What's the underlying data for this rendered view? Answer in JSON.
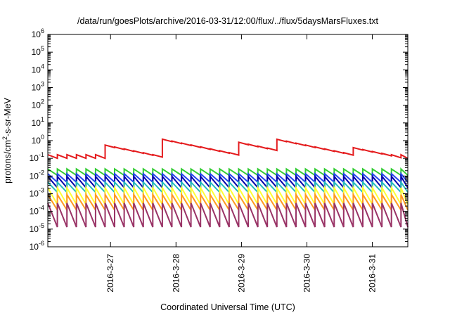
{
  "chart_data": {
    "type": "line",
    "title": "/data/run/goesPlots/archive/2016-03-31/12:00/flux/../flux/5daysMarsFluxes.txt",
    "xlabel": "Coordinated Universal Time (UTC)",
    "ylabel": "protons/cm²-s-sr-MeV",
    "y_scale": "log",
    "ylim": [
      1e-06,
      1000000.0
    ],
    "y_ticks": [
      {
        "value": 1e-06,
        "base": "10",
        "exp": "-6"
      },
      {
        "value": 1e-05,
        "base": "10",
        "exp": "-5"
      },
      {
        "value": 0.0001,
        "base": "10",
        "exp": "-4"
      },
      {
        "value": 0.001,
        "base": "10",
        "exp": "-3"
      },
      {
        "value": 0.01,
        "base": "10",
        "exp": "-2"
      },
      {
        "value": 0.1,
        "base": "10",
        "exp": "-1"
      },
      {
        "value": 1,
        "base": "10",
        "exp": "0"
      },
      {
        "value": 10,
        "base": "10",
        "exp": "1"
      },
      {
        "value": 100,
        "base": "10",
        "exp": "2"
      },
      {
        "value": 1000,
        "base": "10",
        "exp": "3"
      },
      {
        "value": 10000,
        "base": "10",
        "exp": "4"
      },
      {
        "value": 100000,
        "base": "10",
        "exp": "5"
      },
      {
        "value": 1000000,
        "base": "10",
        "exp": "6"
      }
    ],
    "xlim": [
      "2016-03-26 01:00",
      "2016-03-31 13:00"
    ],
    "x_ticks": [
      "2016-3-27",
      "2016-3-28",
      "2016-3-29",
      "2016-3-30",
      "2016-3-31"
    ],
    "grid": false,
    "series": [
      {
        "color": "#e41a1c",
        "sawtooth": {
          "period_hours": 3.5,
          "peak": 0.16,
          "trough": 0.1
        },
        "events": [
          {
            "time": "2016-03-26 20:00",
            "peak": 0.65
          },
          {
            "time": "2016-03-27 18:00",
            "peak": 1.3
          },
          {
            "time": "2016-03-28 20:00",
            "peak": 1.0
          },
          {
            "time": "2016-03-29 13:00",
            "peak": 1.2
          },
          {
            "time": "2016-03-30 14:00",
            "peak": 0.5
          }
        ]
      },
      {
        "color": "#33cc33",
        "sawtooth": {
          "period_hours": 3.5,
          "peak": 0.025,
          "trough": 0.011
        }
      },
      {
        "color": "#2244ee",
        "sawtooth": {
          "period_hours": 3.5,
          "peak": 0.0135,
          "trough": 0.0045
        }
      },
      {
        "color": "#0000aa",
        "sawtooth": {
          "period_hours": 3.5,
          "peak": 0.0095,
          "trough": 0.0022
        }
      },
      {
        "color": "#22bbbb",
        "sawtooth": {
          "period_hours": 3.5,
          "peak": 0.0045,
          "trough": 0.0012
        }
      },
      {
        "color": "#ffff33",
        "sawtooth": {
          "period_hours": 3.5,
          "peak": 0.0022,
          "trough": 0.00025
        }
      },
      {
        "color": "#ff9922",
        "sawtooth": {
          "period_hours": 3.5,
          "peak": 0.0009,
          "trough": 0.00012
        }
      },
      {
        "color": "#993366",
        "sawtooth": {
          "period_hours": 3.5,
          "peak": 0.0003,
          "trough": 1.3e-05
        }
      }
    ]
  }
}
